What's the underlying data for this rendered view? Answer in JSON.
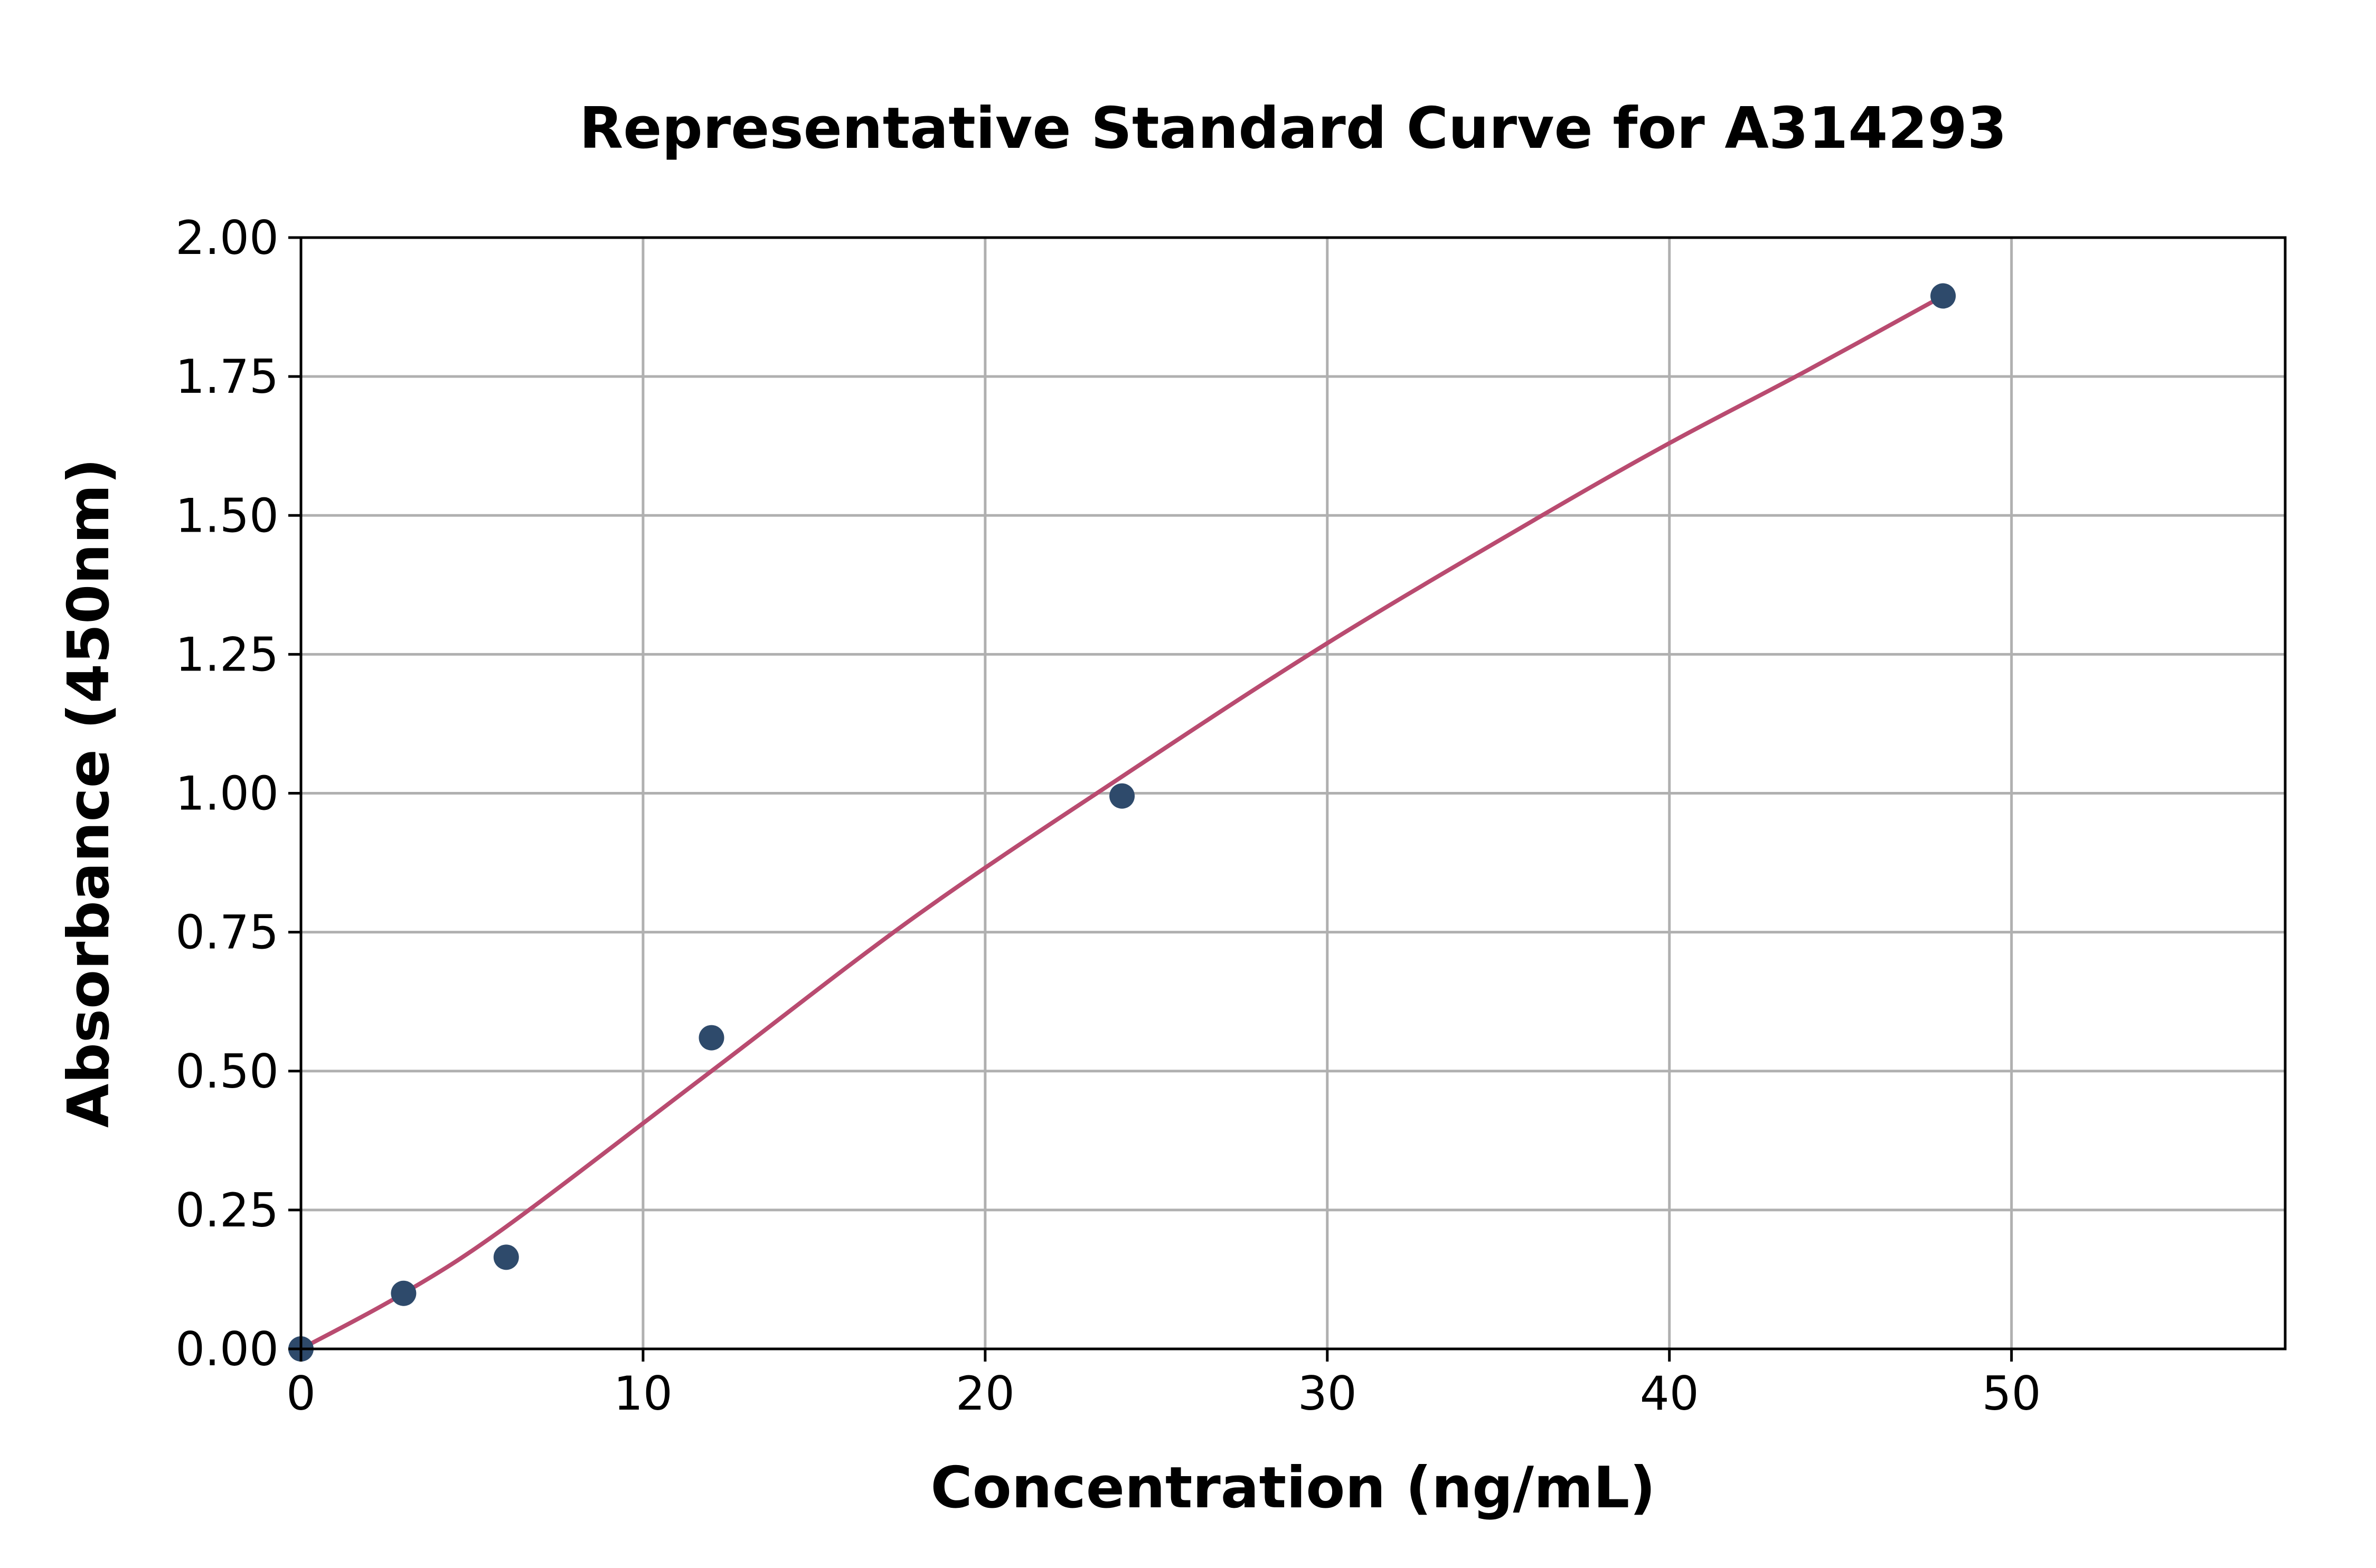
{
  "chart_data": {
    "type": "scatter",
    "title": "Representative Standard Curve for A314293",
    "xlabel": "Concentration (ng/mL)",
    "ylabel": "Absorbance (450nm)",
    "xlim": [
      0,
      58
    ],
    "ylim": [
      0,
      2.0
    ],
    "xticks": [
      0,
      10,
      20,
      30,
      40,
      50
    ],
    "xtick_labels": [
      "0",
      "10",
      "20",
      "30",
      "40",
      "50"
    ],
    "yticks": [
      0,
      0.25,
      0.5,
      0.75,
      1.0,
      1.25,
      1.5,
      1.75,
      2.0
    ],
    "ytick_labels": [
      "0.00",
      "0.25",
      "0.50",
      "0.75",
      "1.00",
      "1.25",
      "1.50",
      "1.75",
      "2.00"
    ],
    "grid": true,
    "points": {
      "x": [
        0,
        3,
        6,
        12,
        24,
        48
      ],
      "y": [
        0.0,
        0.1,
        0.165,
        0.56,
        0.995,
        1.895
      ]
    },
    "fit_curve": {
      "x": [
        0,
        3,
        6,
        12,
        18,
        24,
        30,
        36,
        40,
        44,
        48
      ],
      "y": [
        0.0,
        0.1,
        0.22,
        0.5,
        0.78,
        1.03,
        1.27,
        1.49,
        1.63,
        1.76,
        1.895
      ]
    },
    "colors": {
      "points": "#2e4a6b",
      "curve": "#b94b70",
      "grid": "#b0b0b0"
    }
  }
}
